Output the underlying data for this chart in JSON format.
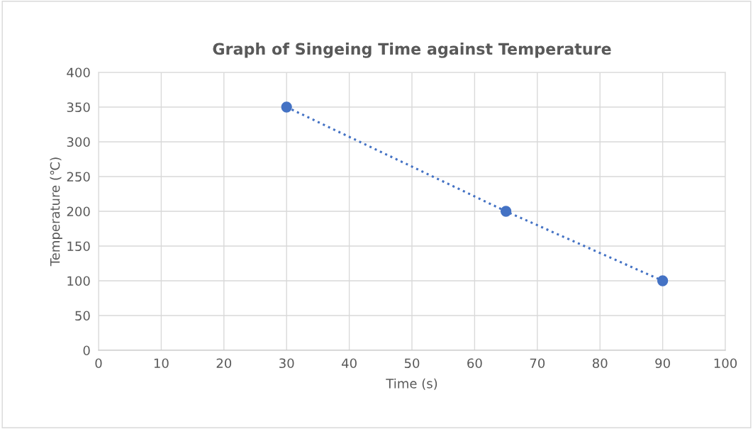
{
  "chart_data": {
    "type": "line",
    "title": "Graph of Singeing Time against Temperature",
    "xlabel": "Time (s)",
    "ylabel": "Temperature (℃)",
    "x": [
      30,
      65,
      90
    ],
    "series": [
      {
        "color": "#4472c4",
        "values": [
          350,
          200,
          100
        ]
      }
    ],
    "xlim": [
      0,
      100
    ],
    "xticks": [
      0,
      10,
      20,
      30,
      40,
      50,
      60,
      70,
      80,
      90,
      100
    ],
    "ylim": [
      0,
      400
    ],
    "yticks": [
      0,
      50,
      100,
      150,
      200,
      250,
      300,
      350,
      400
    ],
    "grid": true,
    "marker": "circle",
    "line_style": "dotted"
  }
}
